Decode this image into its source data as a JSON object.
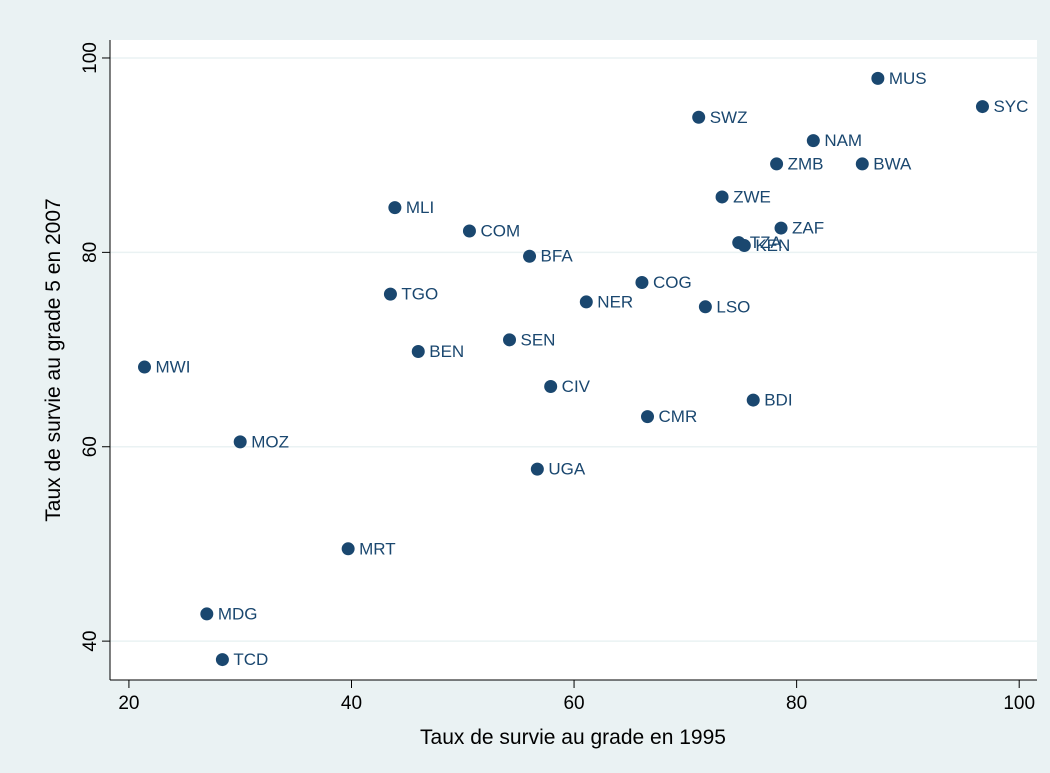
{
  "chart_data": {
    "type": "scatter",
    "xlabel": "Taux de survie au grade en 1995",
    "ylabel": "Taux de survie au grade 5 en 2007",
    "labels": [
      "MUS",
      "SYC",
      "SWZ",
      "NAM",
      "ZMB",
      "BWA",
      "ZWE",
      "MLI",
      "ZAF",
      "COM",
      "TZA",
      "KEN",
      "BFA",
      "COG",
      "TGO",
      "NER",
      "LSO",
      "SEN",
      "BEN",
      "MWI",
      "CIV",
      "BDI",
      "CMR",
      "MOZ",
      "UGA",
      "MRT",
      "MDG",
      "TCD"
    ],
    "x": [
      87.3,
      96.7,
      71.2,
      81.5,
      78.2,
      85.9,
      73.3,
      43.9,
      78.6,
      50.6,
      74.8,
      75.3,
      56.0,
      66.1,
      43.5,
      61.1,
      71.8,
      54.2,
      46.0,
      21.4,
      57.9,
      76.1,
      66.6,
      30.0,
      56.7,
      39.7,
      27.0,
      28.4
    ],
    "values": [
      97.9,
      95.0,
      93.9,
      91.5,
      89.1,
      89.1,
      85.7,
      84.6,
      82.5,
      82.2,
      81.0,
      80.7,
      79.6,
      76.9,
      75.7,
      74.9,
      74.4,
      71.0,
      69.8,
      68.2,
      66.2,
      64.8,
      63.1,
      60.5,
      57.7,
      49.5,
      42.8,
      38.1
    ],
    "color": "#1a476f",
    "xlim": [
      18.3,
      101.6
    ],
    "ylim": [
      36,
      101.85
    ],
    "xticks": [
      20,
      40,
      60,
      80,
      100
    ],
    "yticks": [
      40,
      60,
      80,
      100
    ],
    "grid": true
  }
}
